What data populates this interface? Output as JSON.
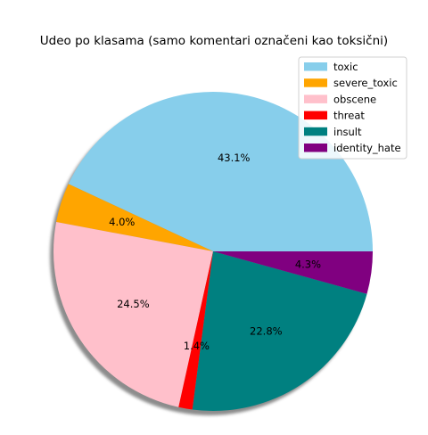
{
  "chart_data": {
    "type": "pie",
    "title": "Udeo po klasama (samo komentari označeni kao toksični)",
    "start_angle": 0,
    "direction": "counterclockwise",
    "shadow": true,
    "legend_placement": "top-right",
    "slices": [
      {
        "name": "toxic",
        "value": 43.1,
        "label": "43.1%",
        "color": "#87CEEB"
      },
      {
        "name": "severe_toxic",
        "value": 4.0,
        "label": "4.0%",
        "color": "#FFA500"
      },
      {
        "name": "obscene",
        "value": 24.5,
        "label": "24.5%",
        "color": "#FFC0CB"
      },
      {
        "name": "threat",
        "value": 1.4,
        "label": "1.4%",
        "color": "#FF0000"
      },
      {
        "name": "insult",
        "value": 22.8,
        "label": "22.8%",
        "color": "#008080"
      },
      {
        "name": "identity_hate",
        "value": 4.3,
        "label": "4.3%",
        "color": "#800080"
      }
    ]
  }
}
